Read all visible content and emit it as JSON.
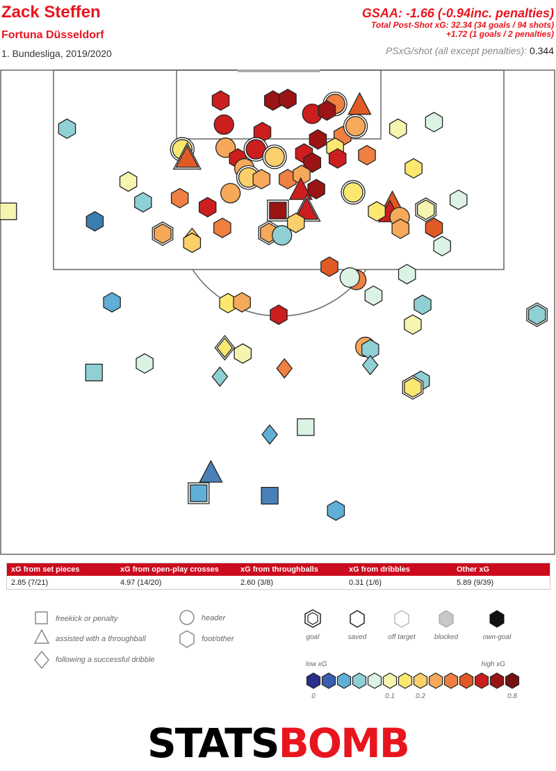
{
  "header": {
    "player": "Zack Steffen",
    "team": "Fortuna Düsseldorf",
    "competition": "1. Bundesliga, 2019/2020",
    "gsaa": "GSAA: -1.66 (-0.94inc. penalties)",
    "psxg_line1": "Total Post-Shot xG: 32.34 (34 goals / 94 shots)",
    "psxg_line2": "+1.72 (1 goals / 2 penalties)",
    "per_shot_label": "PSxG/shot (all except penalties):",
    "per_shot_value": "0.344"
  },
  "breakdown": {
    "columns": [
      "xG from set pieces",
      "xG from open-play crosses",
      "xG from throughballs",
      "xG from dribbles",
      "Other xG"
    ],
    "values": [
      "2.85 (7/21)",
      "4.97 (14/20)",
      "2.60 (3/8)",
      "0.31 (1/6)",
      "5.89 (9/39)"
    ]
  },
  "legend": {
    "shape_items": [
      {
        "shape": "square",
        "label": "freekick or penalty"
      },
      {
        "shape": "triangle",
        "label": "assisted with a throughball"
      },
      {
        "shape": "diamond",
        "label": "following a successful dribble"
      },
      {
        "shape": "circle",
        "label": "header"
      },
      {
        "shape": "hexagon",
        "label": "foot/other"
      }
    ],
    "outcome_items": [
      {
        "label": "goal",
        "style": "goal"
      },
      {
        "label": "saved",
        "style": "saved"
      },
      {
        "label": "off target",
        "style": "off"
      },
      {
        "label": "blocked",
        "style": "blocked"
      },
      {
        "label": "own-goal",
        "style": "own"
      }
    ],
    "scale_low": "low xG",
    "scale_high": "high xG",
    "scale_ticks": [
      {
        "label": "0",
        "index": 0
      },
      {
        "label": "0.1",
        "index": 5
      },
      {
        "label": "0.2",
        "index": 7
      },
      {
        "label": "0.8",
        "index": 13
      }
    ],
    "scale_colors": [
      "#2a2f8a",
      "#3a5fae",
      "#5fafd6",
      "#8fd0d4",
      "#dcf2e4",
      "#f5f5b0",
      "#fbe870",
      "#fbcf6a",
      "#f6a95a",
      "#ef8042",
      "#e05a25",
      "#cc1e1e",
      "#9a1414",
      "#761213"
    ]
  },
  "logo": {
    "part1": "STATS",
    "part2": "BOMB"
  },
  "chart_data": {
    "type": "scatter",
    "description_units": "pitch coordinates in metres; x = distance across pitch (0-68), y = distance from goal line (0-~48); value = xG",
    "colors": {
      "c1": "#5fafd6",
      "c2": "#8fd0d4",
      "c3": "#dcf2e4",
      "c4": "#f5f5b0",
      "c5": "#fbe870",
      "c6": "#fbcf6a",
      "c7": "#f6a95a",
      "c8": "#ef8042",
      "c9": "#e05a25",
      "c10": "#cc1e1e",
      "c11": "#9a1414",
      "c0": "#3a7eb0",
      "c00": "#4a80b8"
    },
    "shots": [
      {
        "x": 27.0,
        "y": 3.6,
        "shape": "hex",
        "c": "c10",
        "outcome": "saved"
      },
      {
        "x": 33.4,
        "y": 3.6,
        "shape": "hex",
        "c": "c11",
        "outcome": "saved"
      },
      {
        "x": 35.2,
        "y": 3.4,
        "shape": "hex",
        "c": "c11",
        "outcome": "saved"
      },
      {
        "x": 38.2,
        "y": 5.2,
        "shape": "circle",
        "c": "c10",
        "outcome": "saved"
      },
      {
        "x": 41.0,
        "y": 4.0,
        "shape": "circle",
        "c": "c8",
        "outcome": "goal"
      },
      {
        "x": 40.0,
        "y": 4.8,
        "shape": "hex",
        "c": "c11",
        "outcome": "saved"
      },
      {
        "x": 44.0,
        "y": 4.2,
        "shape": "triangle",
        "c": "c9",
        "outcome": "saved"
      },
      {
        "x": 27.4,
        "y": 6.5,
        "shape": "circle",
        "c": "c10",
        "outcome": "saved"
      },
      {
        "x": 32.1,
        "y": 7.4,
        "shape": "hex",
        "c": "c10",
        "outcome": "saved"
      },
      {
        "x": 38.9,
        "y": 8.3,
        "shape": "hex",
        "c": "c11",
        "outcome": "saved"
      },
      {
        "x": 41.9,
        "y": 7.9,
        "shape": "hex",
        "c": "c8",
        "outcome": "saved"
      },
      {
        "x": 43.5,
        "y": 6.7,
        "shape": "circle",
        "c": "c7",
        "outcome": "goal"
      },
      {
        "x": 41.0,
        "y": 9.3,
        "shape": "hex",
        "c": "c5",
        "outcome": "saved"
      },
      {
        "x": 48.7,
        "y": 7.0,
        "shape": "hex",
        "c": "c4",
        "outcome": "saved"
      },
      {
        "x": 53.1,
        "y": 6.2,
        "shape": "hex",
        "c": "c3",
        "outcome": "saved"
      },
      {
        "x": 8.2,
        "y": 7.0,
        "shape": "hex",
        "c": "c2",
        "outcome": "saved"
      },
      {
        "x": 22.3,
        "y": 9.5,
        "shape": "circle",
        "c": "c5",
        "outcome": "goal"
      },
      {
        "x": 22.9,
        "y": 10.6,
        "shape": "triangle",
        "c": "c9",
        "outcome": "goal"
      },
      {
        "x": 27.6,
        "y": 9.3,
        "shape": "circle",
        "c": "c7",
        "outcome": "saved"
      },
      {
        "x": 29.1,
        "y": 10.6,
        "shape": "hex",
        "c": "c10",
        "outcome": "saved"
      },
      {
        "x": 31.3,
        "y": 9.5,
        "shape": "circle",
        "c": "c10",
        "outcome": "goal"
      },
      {
        "x": 33.6,
        "y": 10.4,
        "shape": "circle",
        "c": "c6",
        "outcome": "goal"
      },
      {
        "x": 37.2,
        "y": 10.0,
        "shape": "hex",
        "c": "c10",
        "outcome": "saved"
      },
      {
        "x": 38.2,
        "y": 11.1,
        "shape": "hex",
        "c": "c11",
        "outcome": "saved"
      },
      {
        "x": 41.3,
        "y": 10.6,
        "shape": "hex",
        "c": "c10",
        "outcome": "saved"
      },
      {
        "x": 44.9,
        "y": 10.2,
        "shape": "hex",
        "c": "c8",
        "outcome": "saved"
      },
      {
        "x": 50.6,
        "y": 11.8,
        "shape": "hex",
        "c": "c5",
        "outcome": "saved"
      },
      {
        "x": 29.9,
        "y": 11.8,
        "shape": "circle",
        "c": "c7",
        "outcome": "saved"
      },
      {
        "x": 30.4,
        "y": 12.9,
        "shape": "circle",
        "c": "c6",
        "outcome": "goal"
      },
      {
        "x": 32.0,
        "y": 13.1,
        "shape": "hex",
        "c": "c7",
        "outcome": "saved"
      },
      {
        "x": 35.2,
        "y": 13.1,
        "shape": "hex",
        "c": "c8",
        "outcome": "saved"
      },
      {
        "x": 36.9,
        "y": 12.6,
        "shape": "hex",
        "c": "c7",
        "outcome": "saved"
      },
      {
        "x": 36.8,
        "y": 14.5,
        "shape": "triangle",
        "c": "c10",
        "outcome": "saved"
      },
      {
        "x": 38.7,
        "y": 14.3,
        "shape": "hex",
        "c": "c11",
        "outcome": "saved"
      },
      {
        "x": 43.2,
        "y": 14.7,
        "shape": "circle",
        "c": "c5",
        "outcome": "goal"
      },
      {
        "x": 15.7,
        "y": 13.4,
        "shape": "hex",
        "c": "c4",
        "outcome": "saved"
      },
      {
        "x": 17.5,
        "y": 15.9,
        "shape": "hex",
        "c": "c2",
        "outcome": "saved"
      },
      {
        "x": 22.0,
        "y": 15.4,
        "shape": "hex",
        "c": "c8",
        "outcome": "saved"
      },
      {
        "x": 28.2,
        "y": 14.8,
        "shape": "circle",
        "c": "c7",
        "outcome": "saved"
      },
      {
        "x": 25.4,
        "y": 16.5,
        "shape": "hex",
        "c": "c10",
        "outcome": "saved"
      },
      {
        "x": 34.0,
        "y": 16.9,
        "shape": "square",
        "c": "c11",
        "outcome": "goal"
      },
      {
        "x": 37.5,
        "y": 16.9,
        "shape": "triangle",
        "c": "c10",
        "outcome": "goal"
      },
      {
        "x": 48.0,
        "y": 16.1,
        "shape": "triangle",
        "c": "c9",
        "outcome": "saved"
      },
      {
        "x": 47.7,
        "y": 17.2,
        "shape": "triangle",
        "c": "c10",
        "outcome": "saved"
      },
      {
        "x": 46.1,
        "y": 17.0,
        "shape": "hex",
        "c": "c5",
        "outcome": "saved"
      },
      {
        "x": 48.9,
        "y": 17.7,
        "shape": "circle",
        "c": "c7",
        "outcome": "saved"
      },
      {
        "x": 52.1,
        "y": 16.8,
        "shape": "hex",
        "c": "c4",
        "outcome": "goal"
      },
      {
        "x": 56.1,
        "y": 15.6,
        "shape": "hex",
        "c": "c3",
        "outcome": "saved"
      },
      {
        "x": 11.6,
        "y": 18.2,
        "shape": "hex",
        "c": "c0",
        "outcome": "saved"
      },
      {
        "x": 19.9,
        "y": 19.7,
        "shape": "hex",
        "c": "c7",
        "outcome": "goal"
      },
      {
        "x": 27.2,
        "y": 19.0,
        "shape": "hex",
        "c": "c8",
        "outcome": "saved"
      },
      {
        "x": 32.9,
        "y": 19.6,
        "shape": "hex",
        "c": "c7",
        "outcome": "goal"
      },
      {
        "x": 34.5,
        "y": 19.9,
        "shape": "circle",
        "c": "c2",
        "outcome": "saved"
      },
      {
        "x": 36.2,
        "y": 18.4,
        "shape": "hex",
        "c": "c6",
        "outcome": "saved"
      },
      {
        "x": 23.5,
        "y": 20.2,
        "shape": "diamond",
        "c": "c6",
        "outcome": "saved"
      },
      {
        "x": 23.5,
        "y": 20.8,
        "shape": "hex",
        "c": "c6",
        "outcome": "saved"
      },
      {
        "x": 49.0,
        "y": 19.1,
        "shape": "hex",
        "c": "c7",
        "outcome": "saved"
      },
      {
        "x": 53.1,
        "y": 19.0,
        "shape": "hex",
        "c": "c9",
        "outcome": "saved"
      },
      {
        "x": 54.1,
        "y": 21.2,
        "shape": "hex",
        "c": "c3",
        "outcome": "saved"
      },
      {
        "x": 40.3,
        "y": 23.7,
        "shape": "hex",
        "c": "c9",
        "outcome": "saved"
      },
      {
        "x": 49.8,
        "y": 24.6,
        "shape": "hex",
        "c": "c3",
        "outcome": "saved"
      },
      {
        "x": 43.6,
        "y": 25.3,
        "shape": "circle",
        "c": "c8",
        "outcome": "saved"
      },
      {
        "x": 42.8,
        "y": 25.0,
        "shape": "circle",
        "c": "c3",
        "outcome": "saved"
      },
      {
        "x": 13.7,
        "y": 28.0,
        "shape": "hex",
        "c": "c1",
        "outcome": "saved"
      },
      {
        "x": 27.9,
        "y": 28.1,
        "shape": "hex",
        "c": "c5",
        "outcome": "saved"
      },
      {
        "x": 29.6,
        "y": 28.0,
        "shape": "hex",
        "c": "c7",
        "outcome": "saved"
      },
      {
        "x": 45.7,
        "y": 27.2,
        "shape": "hex",
        "c": "c3",
        "outcome": "saved"
      },
      {
        "x": 34.1,
        "y": 29.5,
        "shape": "hex",
        "c": "c10",
        "outcome": "saved"
      },
      {
        "x": 51.7,
        "y": 28.3,
        "shape": "hex",
        "c": "c2",
        "outcome": "saved"
      },
      {
        "x": 50.5,
        "y": 30.7,
        "shape": "hex",
        "c": "c4",
        "outcome": "saved"
      },
      {
        "x": 65.7,
        "y": 29.5,
        "shape": "hex",
        "c": "c2",
        "outcome": "goal"
      },
      {
        "x": 27.5,
        "y": 33.5,
        "shape": "diamond",
        "c": "c5",
        "outcome": "goal"
      },
      {
        "x": 29.7,
        "y": 34.2,
        "shape": "hex",
        "c": "c4",
        "outcome": "saved"
      },
      {
        "x": 44.7,
        "y": 33.4,
        "shape": "circle",
        "c": "c7",
        "outcome": "saved"
      },
      {
        "x": 45.3,
        "y": 33.7,
        "shape": "hex",
        "c": "c2",
        "outcome": "saved"
      },
      {
        "x": 34.8,
        "y": 36.0,
        "shape": "diamond",
        "c": "c8",
        "outcome": "saved"
      },
      {
        "x": 26.9,
        "y": 37.0,
        "shape": "diamond",
        "c": "c2",
        "outcome": "saved"
      },
      {
        "x": 45.3,
        "y": 35.6,
        "shape": "diamond",
        "c": "c2",
        "outcome": "saved"
      },
      {
        "x": 11.5,
        "y": 36.5,
        "shape": "square",
        "c": "c2",
        "outcome": "saved"
      },
      {
        "x": 51.5,
        "y": 37.5,
        "shape": "hex",
        "c": "c2",
        "outcome": "saved"
      },
      {
        "x": 50.5,
        "y": 38.3,
        "shape": "hex",
        "c": "c5",
        "outcome": "goal"
      },
      {
        "x": 33.0,
        "y": 44.0,
        "shape": "diamond",
        "c": "c1",
        "outcome": "saved"
      },
      {
        "x": 37.4,
        "y": 43.1,
        "shape": "square",
        "c": "c3",
        "outcome": "saved"
      },
      {
        "x": 25.8,
        "y": 48.7,
        "shape": "triangle",
        "c": "c00",
        "outcome": "saved"
      },
      {
        "x": 24.3,
        "y": 51.1,
        "shape": "square",
        "c": "c1",
        "outcome": "goal"
      },
      {
        "x": 33.0,
        "y": 51.4,
        "shape": "square",
        "c": "c00",
        "outcome": "saved"
      },
      {
        "x": 41.1,
        "y": 53.2,
        "shape": "hex",
        "c": "c1",
        "outcome": "saved"
      },
      {
        "x": 1.0,
        "y": 17.0,
        "shape": "square",
        "c": "c4",
        "outcome": "saved"
      },
      {
        "x": 17.7,
        "y": 35.4,
        "shape": "hex",
        "c": "c3",
        "outcome": "saved"
      }
    ]
  }
}
